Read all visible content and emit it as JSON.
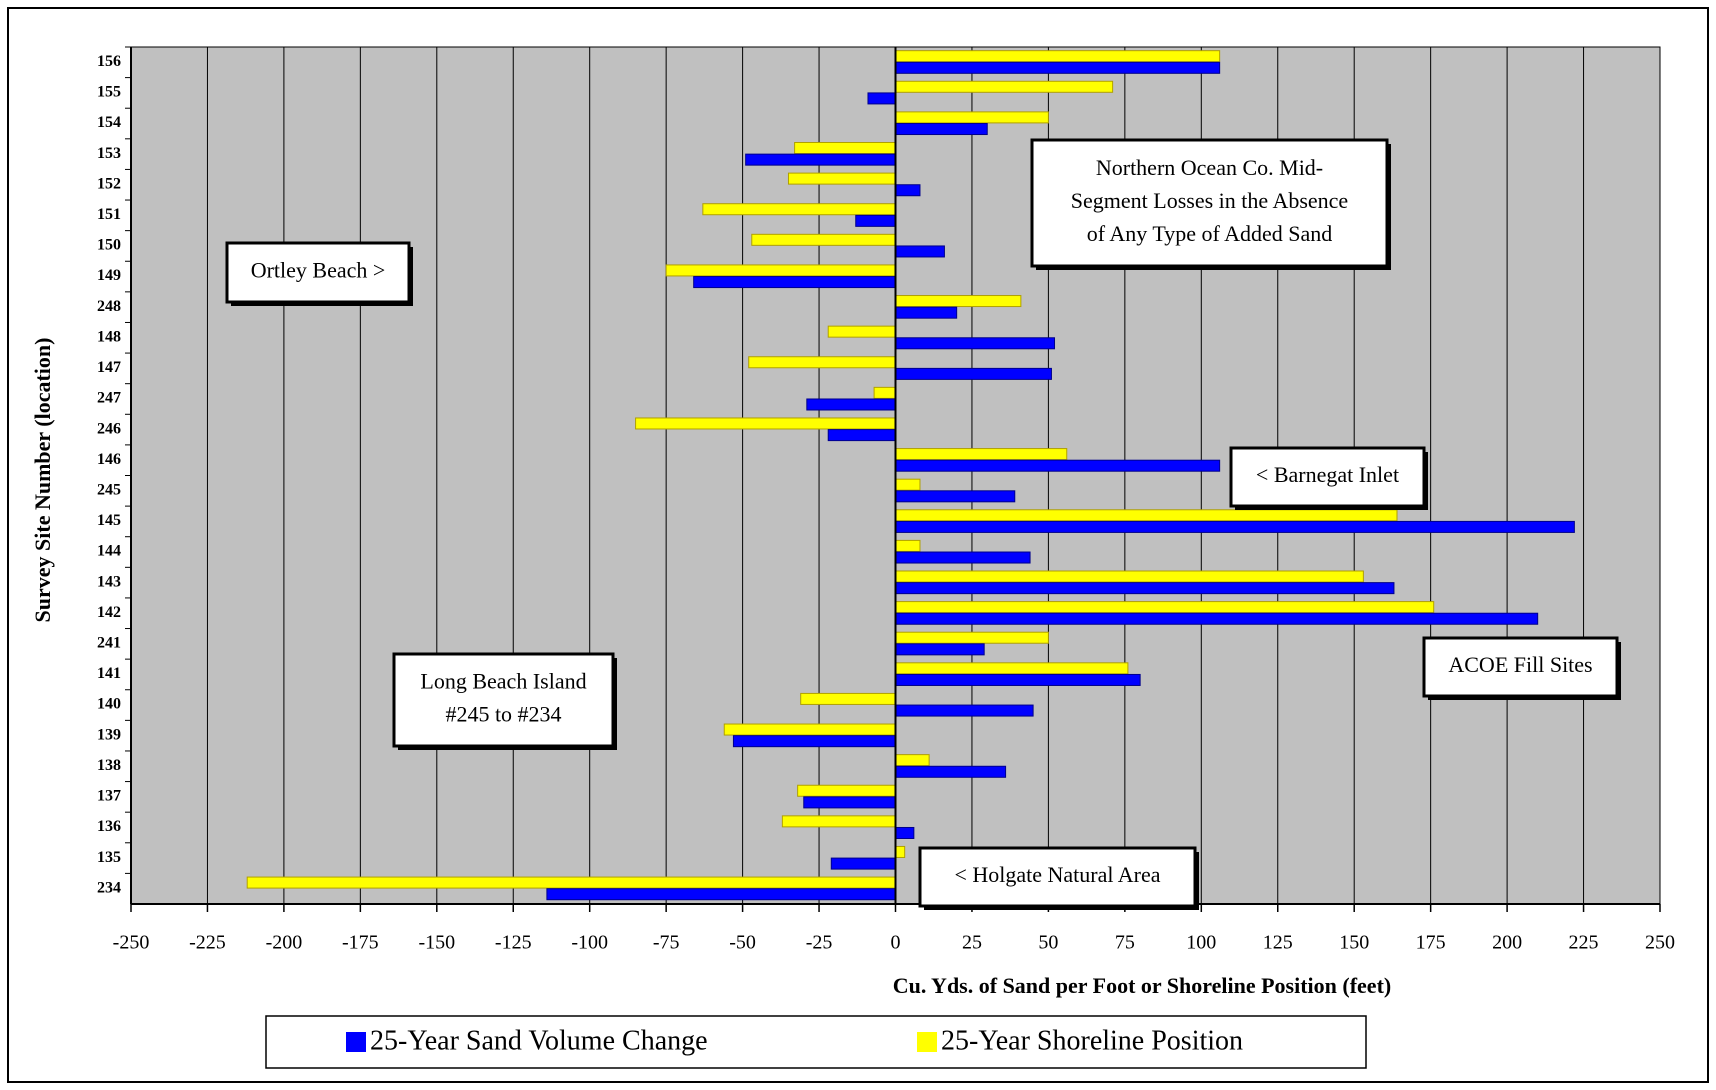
{
  "chart_data": {
    "type": "bar",
    "orientation": "horizontal",
    "x_label": "Cu. Yds. of Sand per Foot or Shoreline Position (feet)",
    "y_label": "Survey Site Number (location)",
    "categories": [
      "156",
      "155",
      "154",
      "153",
      "152",
      "151",
      "150",
      "149",
      "248",
      "148",
      "147",
      "247",
      "246",
      "146",
      "245",
      "145",
      "144",
      "143",
      "142",
      "241",
      "141",
      "140",
      "139",
      "138",
      "137",
      "136",
      "135",
      "234"
    ],
    "series": [
      {
        "name": "25-Year Sand Volume Change",
        "color": "#0000ff",
        "values": [
          106,
          -9,
          30,
          -49,
          8,
          -13,
          16,
          -66,
          20,
          52,
          51,
          -29,
          -22,
          106,
          39,
          222,
          44,
          163,
          210,
          29,
          80,
          45,
          -53,
          36,
          -30,
          6,
          -21,
          -114
        ]
      },
      {
        "name": "25-Year Shoreline Position",
        "color": "#ffff00",
        "values": [
          106,
          71,
          50,
          -33,
          -35,
          -63,
          -47,
          -75,
          41,
          -22,
          -48,
          -7,
          -85,
          56,
          8,
          164,
          8,
          153,
          176,
          50,
          76,
          -31,
          -56,
          11,
          -32,
          -37,
          3,
          -212
        ]
      }
    ],
    "xlim": [
      -250,
      250
    ],
    "xticks": [
      -250,
      -225,
      -200,
      -175,
      -150,
      -125,
      -100,
      -75,
      -50,
      -25,
      0,
      25,
      50,
      75,
      100,
      125,
      150,
      175,
      200,
      225,
      250
    ],
    "grid": true,
    "annotations": [
      {
        "lines": [
          "Ortley Beach >"
        ]
      },
      {
        "lines": [
          "Northern Ocean Co. Mid-",
          "Segment Losses in the Absence",
          "of Any Type of Added Sand"
        ]
      },
      {
        "lines": [
          "< Barnegat Inlet"
        ]
      },
      {
        "lines": [
          "ACOE Fill Sites"
        ]
      },
      {
        "lines": [
          "Long Beach Island",
          "#245 to #234"
        ]
      },
      {
        "lines": [
          "<  Holgate Natural Area"
        ]
      }
    ]
  }
}
